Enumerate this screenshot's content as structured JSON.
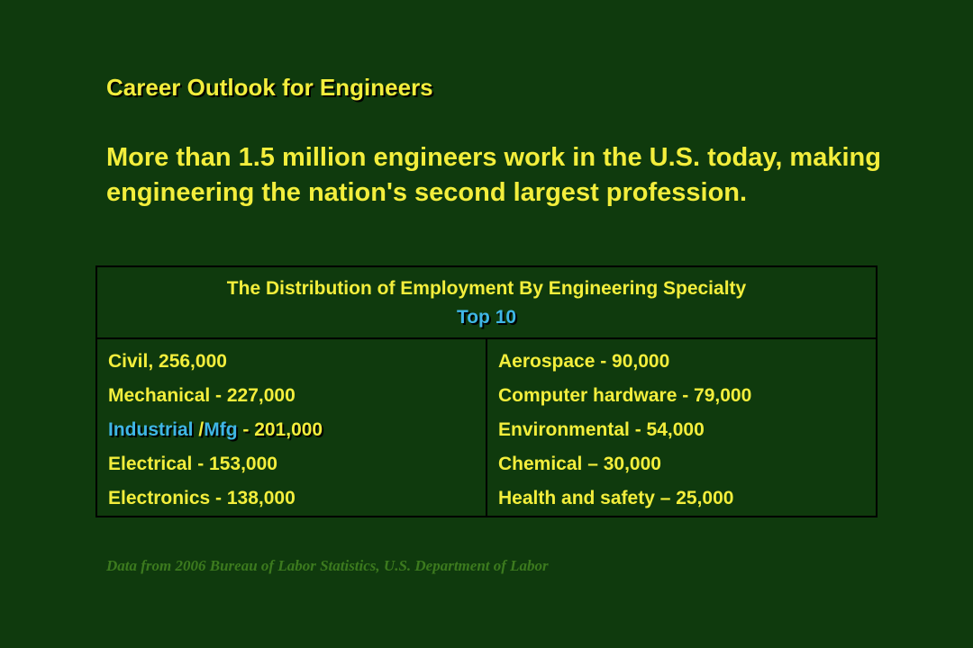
{
  "title": "Career Outlook for Engineers",
  "intro": "More than 1.5 million engineers work in the U.S. today, making engineering the nation's second largest profession.",
  "table": {
    "heading": "The Distribution of Employment By Engineering Specialty",
    "subheading": "Top 10",
    "left_column": [
      "Civil, 256,000",
      "Mechanical - 227,000",
      {
        "part1": "Industrial ",
        "part2": "/",
        "part3": "Mfg",
        "part4": " - 201,000"
      },
      "Electrical - 153,000",
      "Electronics - 138,000"
    ],
    "right_column": [
      "Aerospace - 90,000",
      "Computer hardware - 79,000",
      "Environmental - 54,000",
      "Chemical – 30,000",
      "Health and safety – 25,000"
    ]
  },
  "source": "Data from 2006 Bureau of Labor Statistics, U.S. Department of Labor",
  "colors": {
    "background": "#0f3a0d",
    "text_yellow": "#f3ee3c",
    "highlight_blue": "#3fb6e6",
    "source_green": "#3c7a1e"
  }
}
